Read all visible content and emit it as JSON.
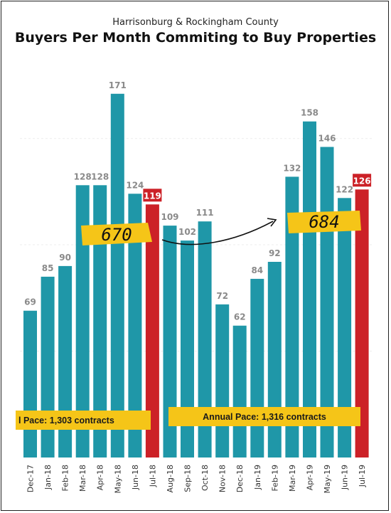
{
  "chart_data": {
    "type": "bar",
    "subtitle": "Harrisonburg & Rockingham County",
    "title": "Buyers Per Month Commiting to Buy Properties",
    "categories": [
      "Dec-17",
      "Jan-18",
      "Feb-18",
      "Mar-18",
      "Apr-18",
      "May-18",
      "Jun-18",
      "Jul-18",
      "Aug-18",
      "Sep-18",
      "Oct-18",
      "Nov-18",
      "Dec-18",
      "Jan-19",
      "Feb-19",
      "Mar-19",
      "Apr-19",
      "May-19",
      "Jun-19",
      "Jul-19"
    ],
    "values": [
      69,
      85,
      90,
      128,
      128,
      171,
      124,
      119,
      109,
      102,
      111,
      72,
      62,
      84,
      92,
      132,
      158,
      146,
      122,
      126
    ],
    "highlighted": [
      false,
      false,
      false,
      false,
      false,
      false,
      false,
      true,
      false,
      false,
      false,
      false,
      false,
      false,
      false,
      false,
      false,
      false,
      false,
      true
    ],
    "ylim": [
      0,
      190
    ],
    "grid": true,
    "colors": {
      "bar": "#1f97a8",
      "highlight": "#cc2127",
      "annotation_fill": "#f5c518"
    },
    "annotations": {
      "pace_left": "l Pace: 1,303 contracts",
      "pace_right": "Annual Pace: 1,316 contracts",
      "sum_left": "670",
      "sum_right": "684"
    }
  }
}
